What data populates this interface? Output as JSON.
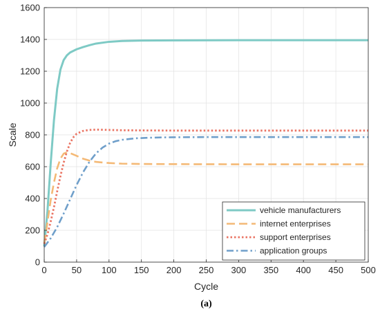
{
  "chart_data": {
    "type": "line",
    "title": "",
    "xlabel": "Cycle",
    "ylabel": "Scale",
    "panel_label": "(a)",
    "xlim": [
      0,
      500
    ],
    "ylim": [
      0,
      1600
    ],
    "xticks": [
      "0",
      "50",
      "100",
      "150",
      "200",
      "250",
      "300",
      "350",
      "400",
      "450",
      "500"
    ],
    "yticks": [
      "0",
      "200",
      "400",
      "600",
      "800",
      "1000",
      "1200",
      "1400",
      "1600"
    ],
    "grid": true,
    "legend_position": "bottom-right",
    "series": [
      {
        "name": "vehicle manufacturers",
        "color": "#7ecac5",
        "style": "solid",
        "x": [
          0,
          5,
          10,
          15,
          20,
          25,
          30,
          35,
          40,
          50,
          60,
          70,
          80,
          100,
          120,
          150,
          200,
          300,
          400,
          500
        ],
        "y": [
          100,
          320,
          620,
          890,
          1090,
          1210,
          1270,
          1300,
          1318,
          1338,
          1352,
          1364,
          1374,
          1385,
          1390,
          1393,
          1394,
          1395,
          1395,
          1395
        ]
      },
      {
        "name": "internet enterprises",
        "color": "#f4b976",
        "style": "dashed",
        "x": [
          0,
          5,
          10,
          15,
          20,
          25,
          30,
          35,
          40,
          50,
          60,
          70,
          80,
          100,
          120,
          150,
          200,
          300,
          400,
          500
        ],
        "y": [
          120,
          250,
          390,
          500,
          590,
          650,
          682,
          690,
          685,
          668,
          650,
          638,
          630,
          623,
          619,
          617,
          616,
          615,
          615,
          615
        ]
      },
      {
        "name": "support enterprises",
        "color": "#ea7564",
        "style": "dotted",
        "x": [
          0,
          5,
          10,
          15,
          20,
          25,
          30,
          35,
          40,
          45,
          50,
          60,
          70,
          80,
          90,
          100,
          120,
          150,
          200,
          300,
          400,
          500
        ],
        "y": [
          115,
          175,
          255,
          345,
          445,
          540,
          625,
          695,
          750,
          785,
          807,
          825,
          831,
          833,
          832,
          831,
          829,
          828,
          827,
          827,
          827,
          827
        ]
      },
      {
        "name": "application groups",
        "color": "#6f9fca",
        "style": "dashdot",
        "x": [
          0,
          10,
          20,
          30,
          40,
          50,
          60,
          70,
          80,
          90,
          100,
          110,
          120,
          140,
          160,
          180,
          200,
          250,
          300,
          400,
          500
        ],
        "y": [
          95,
          150,
          220,
          305,
          395,
          485,
          565,
          632,
          684,
          720,
          745,
          760,
          769,
          778,
          782,
          784,
          785,
          786,
          786,
          786,
          786
        ]
      }
    ]
  }
}
